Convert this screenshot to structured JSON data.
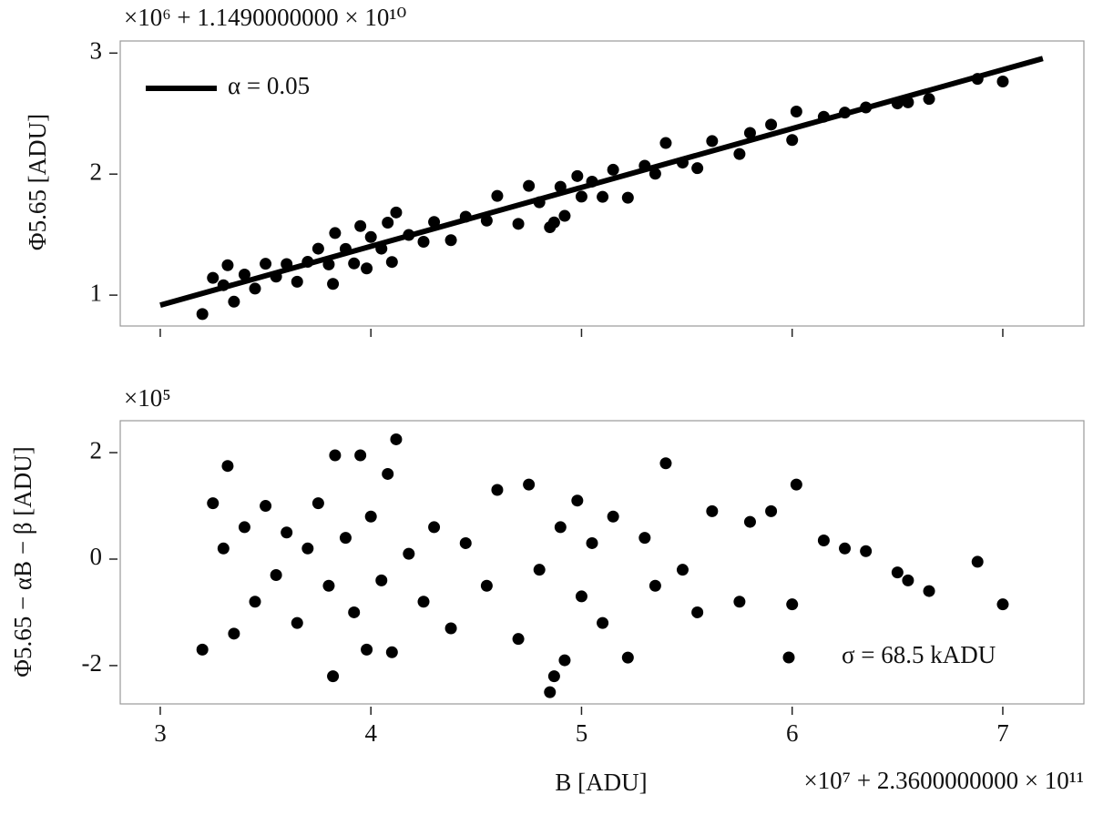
{
  "chart_data": [
    {
      "type": "scatter",
      "ylabel": "Φ5.65 [ADU]",
      "offset_text": "×10⁶ + 1.1490000000 × 10¹⁰",
      "xlim": [
        2.81,
        7.385
      ],
      "xticks": [
        3,
        4,
        5,
        6,
        7
      ],
      "xticklabels": false,
      "ylim": [
        0.745,
        3.1
      ],
      "yticks": [
        1,
        2,
        3
      ],
      "legend": "upper left",
      "series": [
        {
          "name": "α = 0.05",
          "style": "line",
          "color": "#000000",
          "x": [
            3.0,
            7.19
          ],
          "values": [
            0.917,
            2.955
          ]
        },
        {
          "style": "points",
          "color": "#000000",
          "x": [
            3.2,
            3.25,
            3.3,
            3.32,
            3.35,
            3.4,
            3.45,
            3.5,
            3.55,
            3.6,
            3.65,
            3.7,
            3.75,
            3.8,
            3.82,
            3.83,
            3.88,
            3.92,
            3.95,
            3.98,
            4.0,
            4.05,
            4.08,
            4.1,
            4.12,
            4.18,
            4.25,
            4.3,
            4.38,
            4.45,
            4.55,
            4.6,
            4.7,
            4.75,
            4.8,
            4.85,
            4.87,
            4.9,
            4.92,
            4.98,
            5.0,
            5.05,
            5.1,
            5.15,
            5.22,
            5.3,
            5.35,
            5.4,
            5.48,
            5.55,
            5.62,
            5.75,
            5.8,
            5.9,
            6.0,
            6.02,
            6.15,
            6.25,
            6.35,
            6.5,
            6.55,
            6.65,
            6.88,
            7.0
          ],
          "values": [
            0.844,
            1.143,
            1.082,
            1.247,
            0.946,
            1.17,
            1.054,
            1.259,
            1.153,
            1.257,
            1.111,
            1.275,
            1.384,
            1.254,
            1.093,
            1.513,
            1.382,
            1.262,
            1.571,
            1.221,
            1.48,
            1.384,
            1.599,
            1.274,
            1.683,
            1.497,
            1.441,
            1.605,
            1.454,
            1.648,
            1.616,
            1.82,
            1.589,
            1.903,
            1.767,
            1.561,
            1.601,
            1.895,
            1.655,
            1.984,
            1.814,
            1.938,
            1.812,
            2.036,
            1.805,
            2.069,
            2.003,
            2.257,
            2.095,
            2.049,
            2.273,
            2.166,
            2.34,
            2.409,
            2.282,
            2.517,
            2.474,
            2.508,
            2.551,
            2.584,
            2.593,
            2.621,
            2.787,
            2.765
          ]
        }
      ]
    },
    {
      "type": "scatter",
      "ylabel": "Φ5.65 − αB − β [ADU]",
      "xlabel": "B [ADU]",
      "offset_text": "×10⁵",
      "x_offset_text": "×10⁷ + 2.3600000000 × 10¹¹",
      "xlim": [
        2.81,
        7.385
      ],
      "xticks": [
        3,
        4,
        5,
        6,
        7
      ],
      "xticklabels": true,
      "ylim": [
        -2.72,
        2.6
      ],
      "yticks": [
        -2,
        0,
        2
      ],
      "legend": "lower right",
      "series": [
        {
          "name": "σ = 68.5 kADU",
          "style": "points",
          "color": "#000000",
          "x": [
            3.2,
            3.25,
            3.3,
            3.32,
            3.35,
            3.4,
            3.45,
            3.5,
            3.55,
            3.6,
            3.65,
            3.7,
            3.75,
            3.8,
            3.82,
            3.83,
            3.88,
            3.92,
            3.95,
            3.98,
            4.0,
            4.05,
            4.08,
            4.1,
            4.12,
            4.18,
            4.25,
            4.3,
            4.38,
            4.45,
            4.55,
            4.6,
            4.7,
            4.75,
            4.8,
            4.85,
            4.87,
            4.9,
            4.92,
            4.98,
            5.0,
            5.05,
            5.1,
            5.15,
            5.22,
            5.3,
            5.35,
            5.4,
            5.48,
            5.55,
            5.62,
            5.75,
            5.8,
            5.9,
            6.0,
            6.02,
            6.15,
            6.25,
            6.35,
            6.5,
            6.55,
            6.65,
            6.88,
            7.0
          ],
          "values": [
            -1.7,
            1.05,
            0.2,
            1.75,
            -1.4,
            0.6,
            -0.8,
            1.0,
            -0.3,
            0.5,
            -1.2,
            0.2,
            1.05,
            -0.5,
            -2.2,
            1.95,
            0.4,
            -1.0,
            1.95,
            -1.7,
            0.8,
            -0.4,
            1.6,
            -1.75,
            2.25,
            0.1,
            -0.8,
            0.6,
            -1.3,
            0.3,
            -0.5,
            1.3,
            -1.5,
            1.4,
            -0.2,
            -2.5,
            -2.2,
            0.6,
            -1.9,
            1.1,
            -0.7,
            0.3,
            -1.2,
            0.8,
            -1.85,
            0.4,
            -0.5,
            1.8,
            -0.2,
            -1.0,
            0.9,
            -0.8,
            0.7,
            0.9,
            -0.85,
            1.4,
            0.35,
            0.2,
            0.15,
            -0.25,
            -0.4,
            -0.6,
            -0.05,
            -0.85
          ]
        }
      ]
    }
  ]
}
